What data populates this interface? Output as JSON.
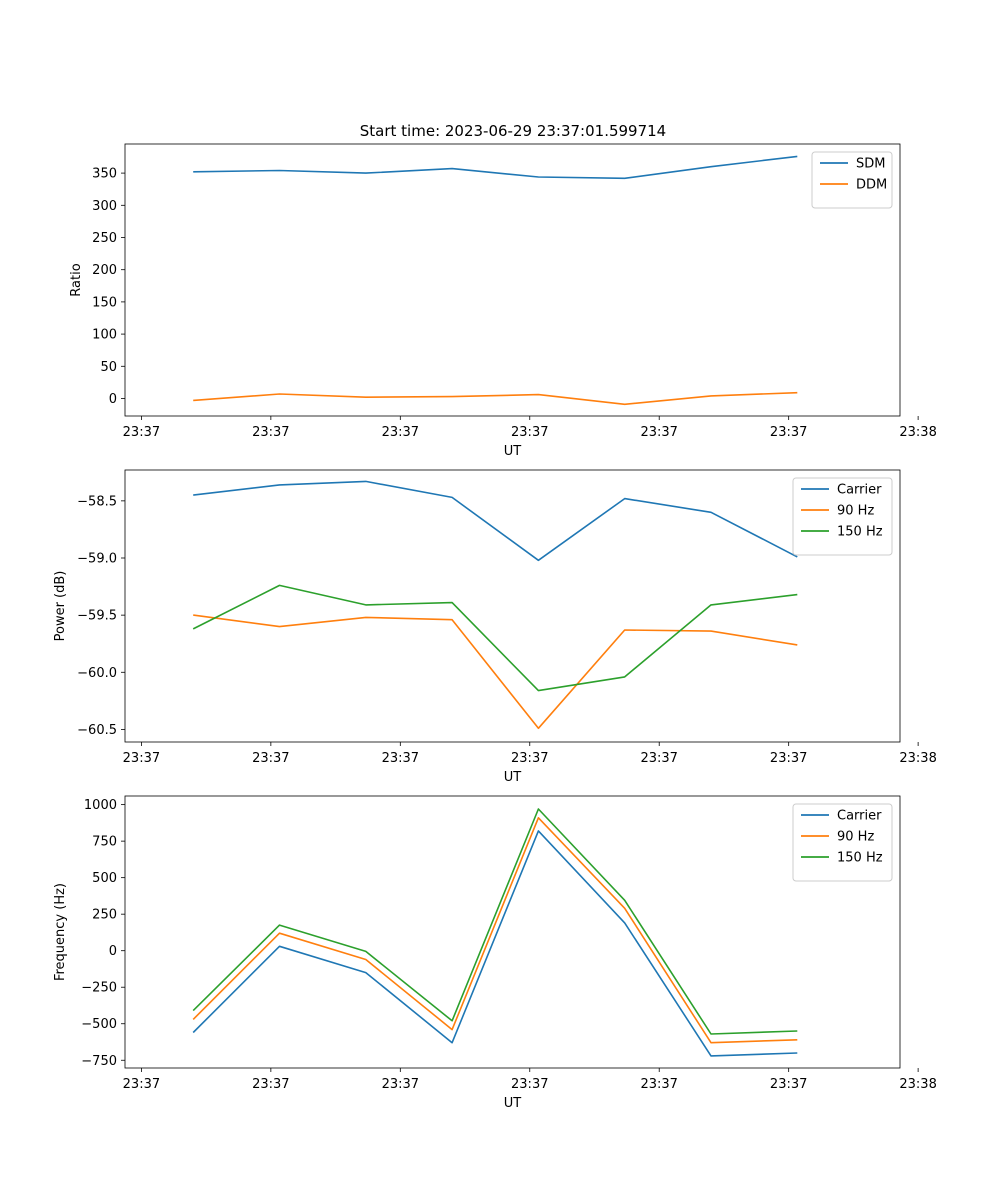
{
  "figure_title": "Start time: 2023-06-29 23:37:01.599714",
  "chart_data": [
    {
      "type": "line",
      "title": "Start time: 2023-06-29 23:37:01.599714",
      "xlabel": "UT",
      "ylabel": "Ratio",
      "x": [
        1,
        2,
        3,
        4,
        5,
        6,
        7,
        8
      ],
      "xlim": [
        0.21,
        9.19
      ],
      "x_ticks": [
        0.4,
        1.9,
        3.4,
        4.9,
        6.4,
        7.9,
        9.4
      ],
      "x_tick_labels": [
        "23:37",
        "23:37",
        "23:37",
        "23:37",
        "23:37",
        "23:37",
        "23:38"
      ],
      "ylim": [
        -27.2,
        395.2
      ],
      "y_ticks": [
        0,
        50,
        100,
        150,
        200,
        250,
        300,
        350
      ],
      "y_tick_labels": [
        "0",
        "50",
        "100",
        "150",
        "200",
        "250",
        "300",
        "350"
      ],
      "grid": false,
      "legend": "top-right",
      "series": [
        {
          "name": "SDM",
          "color": "#1f77b4",
          "values": [
            352,
            354,
            350,
            357,
            344,
            342,
            360,
            376
          ]
        },
        {
          "name": "DDM",
          "color": "#ff7f0e",
          "values": [
            -3,
            7,
            2,
            3,
            6,
            -9,
            4,
            9
          ]
        }
      ]
    },
    {
      "type": "line",
      "title": "",
      "xlabel": "UT",
      "ylabel": "Power (dB)",
      "x": [
        1,
        2,
        3,
        4,
        5,
        6,
        7,
        8
      ],
      "xlim": [
        0.21,
        9.19
      ],
      "x_ticks": [
        0.4,
        1.9,
        3.4,
        4.9,
        6.4,
        7.9,
        9.4
      ],
      "x_tick_labels": [
        "23:37",
        "23:37",
        "23:37",
        "23:37",
        "23:37",
        "23:37",
        "23:38"
      ],
      "ylim": [
        -60.61,
        -58.23
      ],
      "y_ticks": [
        -60.5,
        -60.0,
        -59.5,
        -59.0,
        -58.5
      ],
      "y_tick_labels": [
        "−60.5",
        "−60.0",
        "−59.5",
        "−59.0",
        "−58.5"
      ],
      "grid": false,
      "legend": "top-right",
      "series": [
        {
          "name": "Carrier",
          "color": "#1f77b4",
          "values": [
            -58.45,
            -58.36,
            -58.33,
            -58.47,
            -59.02,
            -58.48,
            -58.6,
            -58.99
          ]
        },
        {
          "name": "90 Hz",
          "color": "#ff7f0e",
          "values": [
            -59.5,
            -59.6,
            -59.52,
            -59.54,
            -60.49,
            -59.63,
            -59.64,
            -59.76
          ]
        },
        {
          "name": "150 Hz",
          "color": "#2ca02c",
          "values": [
            -59.62,
            -59.24,
            -59.41,
            -59.39,
            -60.16,
            -60.04,
            -59.41,
            -59.32
          ]
        }
      ]
    },
    {
      "type": "line",
      "title": "",
      "xlabel": "UT",
      "ylabel": "Frequency (Hz)",
      "x": [
        1,
        2,
        3,
        4,
        5,
        6,
        7,
        8
      ],
      "xlim": [
        0.21,
        9.19
      ],
      "x_ticks": [
        0.4,
        1.9,
        3.4,
        4.9,
        6.4,
        7.9,
        9.4
      ],
      "x_tick_labels": [
        "23:37",
        "23:37",
        "23:37",
        "23:37",
        "23:37",
        "23:37",
        "23:38"
      ],
      "ylim": [
        -803,
        1059
      ],
      "y_ticks": [
        -750,
        -500,
        -250,
        0,
        250,
        500,
        750,
        1000
      ],
      "y_tick_labels": [
        "−750",
        "−500",
        "−250",
        "0",
        "250",
        "500",
        "750",
        "1000"
      ],
      "grid": false,
      "legend": "top-right",
      "series": [
        {
          "name": "Carrier",
          "color": "#1f77b4",
          "values": [
            -560,
            30,
            -150,
            -630,
            820,
            190,
            -720,
            -700
          ]
        },
        {
          "name": "90 Hz",
          "color": "#ff7f0e",
          "values": [
            -470,
            120,
            -60,
            -540,
            910,
            290,
            -630,
            -610
          ]
        },
        {
          "name": "150 Hz",
          "color": "#2ca02c",
          "values": [
            -410,
            175,
            -5,
            -480,
            970,
            345,
            -570,
            -550
          ]
        }
      ]
    }
  ]
}
